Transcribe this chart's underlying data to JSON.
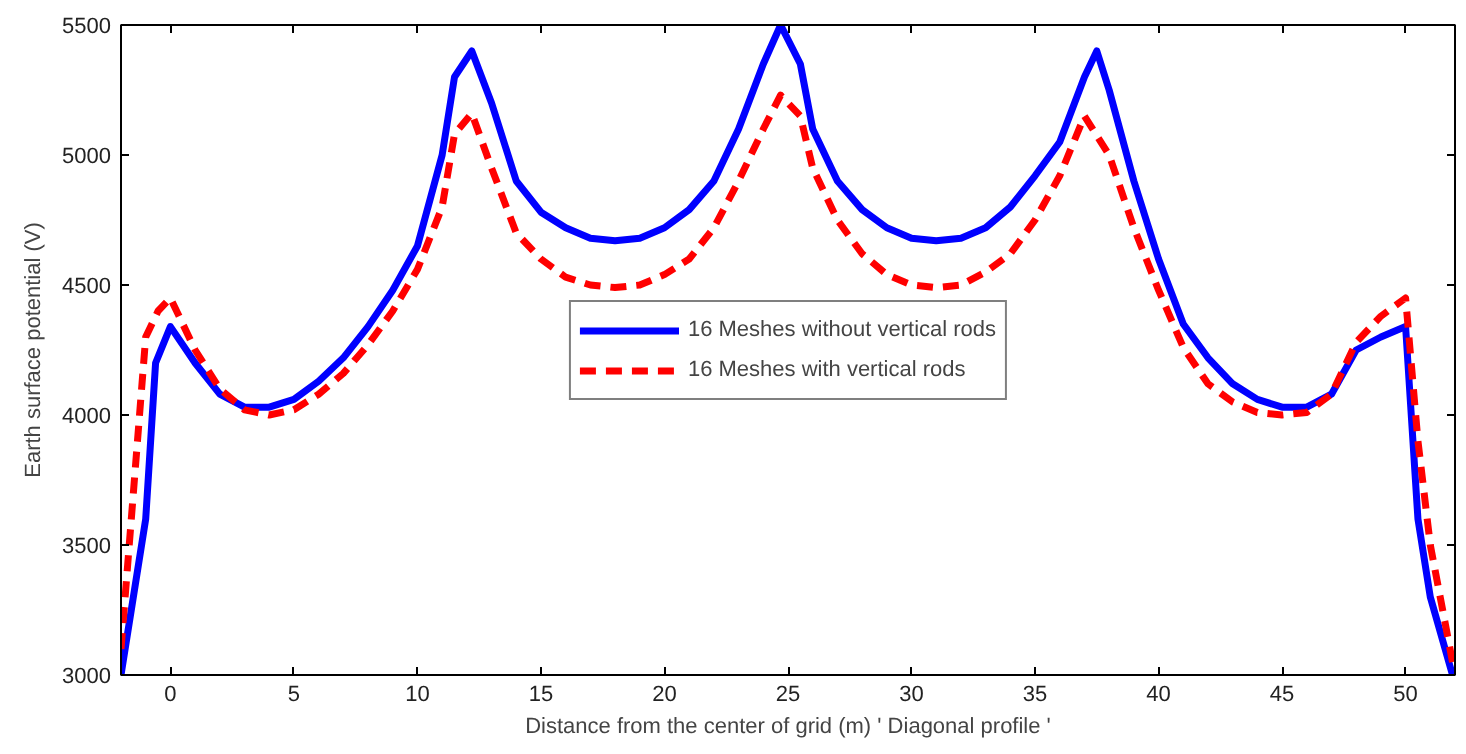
{
  "chart_data": {
    "type": "line",
    "xlabel": "Distance from the center of grid (m) ' Diagonal profile '",
    "ylabel": "Earth surface potential (V)",
    "xlim": [
      -2,
      52
    ],
    "ylim": [
      3000,
      5500
    ],
    "xticks": [
      0,
      5,
      10,
      15,
      20,
      25,
      30,
      35,
      40,
      45,
      50
    ],
    "yticks": [
      3000,
      3500,
      4000,
      4500,
      5000,
      5500
    ],
    "grid": false,
    "legend": "center",
    "marker": "none",
    "series": [
      {
        "name": "16 Meshes without vertical rods",
        "color": "#0000ff",
        "line_style": "solid",
        "x": [
          -2,
          -1,
          -0.6,
          0,
          1,
          2,
          3,
          4,
          5,
          6,
          7,
          8,
          9,
          10,
          11,
          11.5,
          12.2,
          13,
          14,
          15,
          16,
          17,
          18,
          19,
          20,
          21,
          22,
          23,
          24,
          24.7,
          25.5,
          26,
          27,
          28,
          29,
          30,
          31,
          32,
          33,
          34,
          35,
          36,
          37,
          37.5,
          38,
          39,
          40,
          41,
          42,
          43,
          44,
          45,
          46,
          47,
          48,
          49,
          50,
          50.5,
          51,
          51.9
        ],
        "values": [
          3000,
          3600,
          4200,
          4340,
          4200,
          4080,
          4030,
          4030,
          4060,
          4130,
          4220,
          4340,
          4480,
          4650,
          5000,
          5300,
          5400,
          5200,
          4900,
          4780,
          4720,
          4680,
          4670,
          4680,
          4720,
          4790,
          4900,
          5100,
          5350,
          5500,
          5350,
          5100,
          4900,
          4790,
          4720,
          4680,
          4670,
          4680,
          4720,
          4800,
          4920,
          5050,
          5300,
          5400,
          5250,
          4900,
          4600,
          4350,
          4220,
          4120,
          4060,
          4030,
          4030,
          4080,
          4250,
          4300,
          4340,
          3600,
          3300,
          3000
        ]
      },
      {
        "name": "16 Meshes with vertical rods",
        "color": "#ff0000",
        "line_style": "dashed",
        "x": [
          -2,
          -1,
          -0.5,
          0,
          1,
          2,
          3,
          4,
          5,
          6,
          7,
          8,
          9,
          10,
          11,
          11.5,
          12.2,
          13,
          14,
          15,
          16,
          17,
          18,
          19,
          20,
          21,
          22,
          23,
          24,
          24.7,
          25.5,
          26,
          27,
          28,
          29,
          30,
          31,
          32,
          33,
          34,
          35,
          36,
          37,
          38,
          39,
          40,
          41,
          42,
          43,
          44,
          45,
          46,
          47,
          48,
          49,
          50,
          50.5,
          51,
          51.9
        ],
        "values": [
          3100,
          4300,
          4400,
          4450,
          4250,
          4100,
          4020,
          4000,
          4020,
          4080,
          4160,
          4270,
          4400,
          4560,
          4800,
          5080,
          5160,
          4950,
          4700,
          4600,
          4530,
          4500,
          4490,
          4500,
          4540,
          4600,
          4720,
          4900,
          5100,
          5230,
          5150,
          4950,
          4750,
          4620,
          4540,
          4500,
          4490,
          4500,
          4550,
          4620,
          4750,
          4920,
          5150,
          5000,
          4720,
          4480,
          4260,
          4120,
          4050,
          4010,
          4000,
          4010,
          4080,
          4280,
          4380,
          4450,
          3900,
          3500,
          3050
        ]
      }
    ]
  }
}
